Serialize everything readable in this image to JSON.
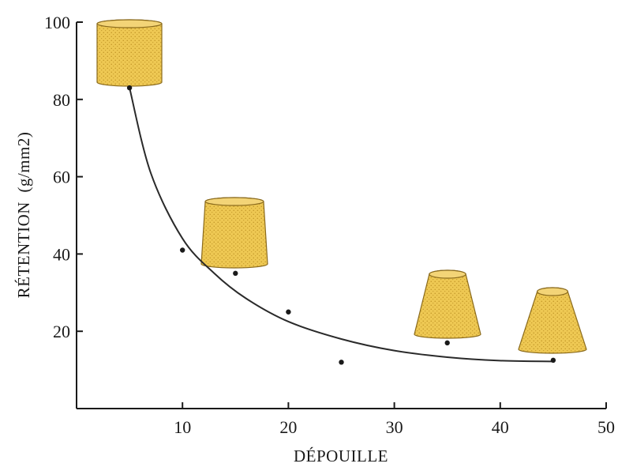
{
  "chart_data": {
    "type": "scatter",
    "title": "",
    "xlabel": "DÉPOUILLE",
    "ylabel": "RÉTENTION  (g/mm2)",
    "xlim": [
      0,
      50
    ],
    "ylim": [
      0,
      100
    ],
    "x_ticks": [
      10,
      20,
      30,
      40,
      50
    ],
    "y_ticks": [
      20,
      40,
      60,
      80,
      100
    ],
    "grid": false,
    "series": [
      {
        "points": [
          {
            "x": 5,
            "y": 83
          },
          {
            "x": 10,
            "y": 41
          },
          {
            "x": 15,
            "y": 35
          },
          {
            "x": 20,
            "y": 25
          },
          {
            "x": 25,
            "y": 12
          },
          {
            "x": 35,
            "y": 17
          },
          {
            "x": 45,
            "y": 12.5
          }
        ]
      }
    ],
    "trend_curve": [
      {
        "x": 5,
        "y": 83
      },
      {
        "x": 7,
        "y": 61
      },
      {
        "x": 10,
        "y": 44
      },
      {
        "x": 13,
        "y": 35
      },
      {
        "x": 16,
        "y": 28.5
      },
      {
        "x": 20,
        "y": 22.5
      },
      {
        "x": 25,
        "y": 18
      },
      {
        "x": 30,
        "y": 15
      },
      {
        "x": 35,
        "y": 13.3
      },
      {
        "x": 40,
        "y": 12.4
      },
      {
        "x": 45,
        "y": 12.2
      }
    ],
    "illustrations": [
      {
        "name": "cylinder-illustration",
        "at_x": 5,
        "taper": 0.0
      },
      {
        "name": "slight-cone-illustration",
        "at_x": 10,
        "taper": 0.12
      },
      {
        "name": "cone-illustration",
        "at_x": 35,
        "taper": 0.45
      },
      {
        "name": "wide-cone-illustration",
        "at_x": 45,
        "taper": 0.55
      }
    ],
    "colors": {
      "shape_fill": "#eec853",
      "shape_dots": "#b88a1c",
      "shape_edge": "#8a6a1c",
      "axis": "#1a1a1a",
      "curve": "#2a2a2a"
    }
  }
}
